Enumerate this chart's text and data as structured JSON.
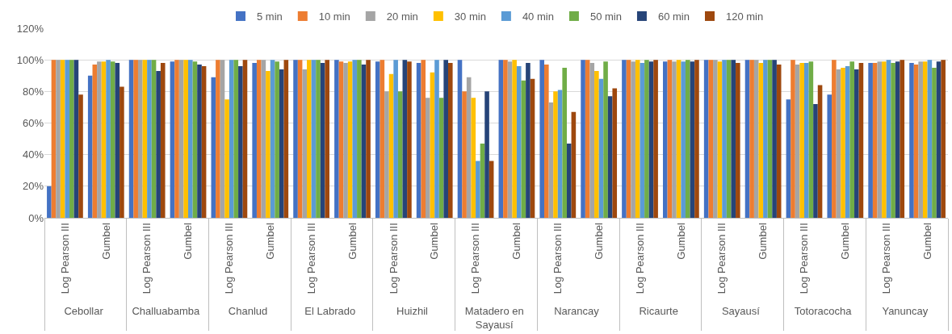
{
  "chart_data": {
    "type": "bar",
    "categories": [
      [
        "Cebollar",
        "Log Pearson III"
      ],
      [
        null,
        "Gumbel"
      ],
      [
        "Challuabamba",
        "Log Pearson III"
      ],
      [
        null,
        "Gumbel"
      ],
      [
        "Chanlud",
        "Log Pearson III"
      ],
      [
        null,
        "Gumbel"
      ],
      [
        "El Labrado",
        "Log Pearson III"
      ],
      [
        null,
        "Gumbel"
      ],
      [
        "Huizhil",
        "Log Pearson III"
      ],
      [
        null,
        "Gumbel"
      ],
      [
        "Matadero en Sayausí",
        "Log Pearson III"
      ],
      [
        null,
        "Gumbel"
      ],
      [
        "Narancay",
        "Log Pearson III"
      ],
      [
        null,
        "Gumbel"
      ],
      [
        "Ricaurte",
        "Log Pearson III"
      ],
      [
        null,
        "Gumbel"
      ],
      [
        "Sayausí",
        "Log Pearson III"
      ],
      [
        null,
        "Gumbel"
      ],
      [
        "Totoracocha",
        "Log Pearson III"
      ],
      [
        null,
        "Gumbel"
      ],
      [
        "Yanuncay",
        "Log Pearson III"
      ],
      [
        null,
        "Gumbel"
      ]
    ],
    "series": [
      {
        "name": "5 min",
        "color": "#4472c4",
        "values": [
          20,
          90,
          100,
          99,
          89,
          98,
          100,
          100,
          99,
          98,
          100,
          100,
          100,
          100,
          100,
          99,
          100,
          100,
          75,
          78,
          98,
          98
        ]
      },
      {
        "name": "10 min",
        "color": "#ed7d31",
        "values": [
          100,
          97,
          100,
          100,
          100,
          100,
          100,
          99,
          100,
          100,
          80,
          100,
          97,
          100,
          100,
          100,
          100,
          100,
          100,
          100,
          98,
          97
        ]
      },
      {
        "name": "20 min",
        "color": "#a5a5a5",
        "values": [
          100,
          99,
          100,
          100,
          100,
          100,
          94,
          98,
          80,
          76,
          89,
          99,
          73,
          98,
          99,
          99,
          100,
          100,
          97,
          94,
          99,
          99
        ]
      },
      {
        "name": "30 min",
        "color": "#ffc000",
        "values": [
          100,
          99,
          100,
          100,
          75,
          93,
          100,
          99,
          91,
          92,
          76,
          100,
          80,
          93,
          100,
          100,
          99,
          98,
          98,
          95,
          99,
          99
        ]
      },
      {
        "name": "40 min",
        "color": "#5b9bd5",
        "values": [
          100,
          100,
          100,
          100,
          100,
          100,
          100,
          100,
          100,
          100,
          36,
          96,
          81,
          88,
          98,
          99,
          100,
          100,
          98,
          96,
          100,
          100
        ]
      },
      {
        "name": "50 min",
        "color": "#70ad47",
        "values": [
          100,
          99,
          100,
          99,
          100,
          99,
          100,
          100,
          80,
          76,
          47,
          87,
          95,
          99,
          100,
          100,
          100,
          100,
          99,
          99,
          98,
          95
        ]
      },
      {
        "name": "60 min",
        "color": "#264478",
        "values": [
          100,
          98,
          93,
          97,
          96,
          94,
          98,
          97,
          100,
          100,
          80,
          98,
          47,
          77,
          99,
          99,
          100,
          100,
          72,
          94,
          99,
          99
        ]
      },
      {
        "name": "120 min",
        "color": "#9e480e",
        "values": [
          78,
          83,
          98,
          96,
          100,
          100,
          100,
          100,
          99,
          98,
          36,
          88,
          67,
          82,
          100,
          100,
          98,
          97,
          84,
          98,
          100,
          100
        ]
      }
    ],
    "ylim": [
      0,
      120
    ],
    "yticks": [
      {
        "value": 0,
        "label": "0%"
      },
      {
        "value": 20,
        "label": "20%"
      },
      {
        "value": 40,
        "label": "40%"
      },
      {
        "value": 60,
        "label": "60%"
      },
      {
        "value": 80,
        "label": "80%"
      },
      {
        "value": 100,
        "label": "100%"
      },
      {
        "value": 120,
        "label": "120%"
      }
    ],
    "grid": "y",
    "legend": "top"
  }
}
